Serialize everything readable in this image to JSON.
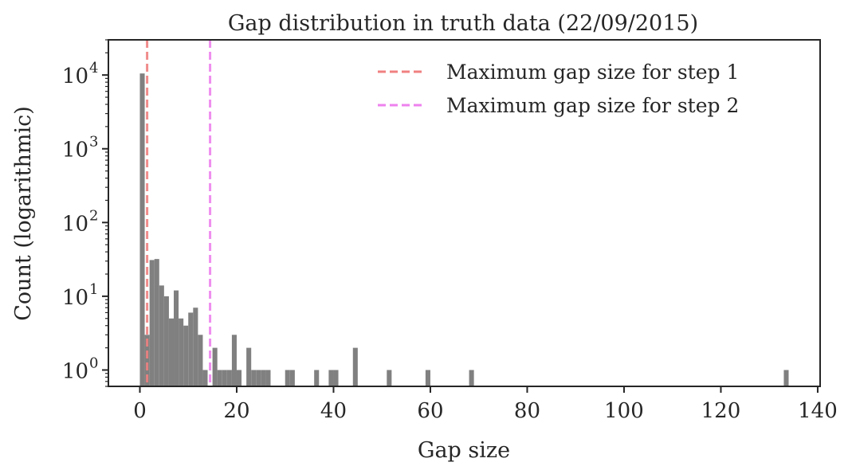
{
  "chart_data": {
    "type": "bar",
    "title": "Gap distribution in truth data (22/09/2015)",
    "xlabel": "Gap size",
    "ylabel": "Count (logarithmic)",
    "xlim": [
      -6.5,
      140.5
    ],
    "ylim": [
      0.6,
      30000
    ],
    "yscale": "log",
    "grid": false,
    "legend_position": "top-right",
    "x_ticks": [
      0,
      20,
      40,
      60,
      80,
      100,
      120,
      140
    ],
    "x_tick_labels": [
      "0",
      "20",
      "40",
      "60",
      "80",
      "100",
      "120",
      "140"
    ],
    "y_ticks": [
      {
        "value": 1,
        "base": "10",
        "exp": "0"
      },
      {
        "value": 10,
        "base": "10",
        "exp": "1"
      },
      {
        "value": 100,
        "base": "10",
        "exp": "2"
      },
      {
        "value": 1000,
        "base": "10",
        "exp": "3"
      },
      {
        "value": 10000,
        "base": "10",
        "exp": "4"
      }
    ],
    "bin_width": 1.0,
    "histogram": {
      "color": "#808080",
      "bins": [
        {
          "x": 0,
          "count": 10500
        },
        {
          "x": 1,
          "count": 3
        },
        {
          "x": 2,
          "count": 31
        },
        {
          "x": 3,
          "count": 32
        },
        {
          "x": 4,
          "count": 14
        },
        {
          "x": 5,
          "count": 10
        },
        {
          "x": 6,
          "count": 5
        },
        {
          "x": 7,
          "count": 12
        },
        {
          "x": 8,
          "count": 5
        },
        {
          "x": 9,
          "count": 4
        },
        {
          "x": 10,
          "count": 6
        },
        {
          "x": 11,
          "count": 7
        },
        {
          "x": 12,
          "count": 3
        },
        {
          "x": 13,
          "count": 1
        },
        {
          "x": 15,
          "count": 2
        },
        {
          "x": 16,
          "count": 1
        },
        {
          "x": 17,
          "count": 1
        },
        {
          "x": 18,
          "count": 1
        },
        {
          "x": 19,
          "count": 3
        },
        {
          "x": 20,
          "count": 1
        },
        {
          "x": 22,
          "count": 2
        },
        {
          "x": 23,
          "count": 1
        },
        {
          "x": 24,
          "count": 1
        },
        {
          "x": 25,
          "count": 1
        },
        {
          "x": 26,
          "count": 1
        },
        {
          "x": 30,
          "count": 1
        },
        {
          "x": 31,
          "count": 1
        },
        {
          "x": 36,
          "count": 1
        },
        {
          "x": 39,
          "count": 1
        },
        {
          "x": 40,
          "count": 1
        },
        {
          "x": 44,
          "count": 2
        },
        {
          "x": 51,
          "count": 1
        },
        {
          "x": 59,
          "count": 1
        },
        {
          "x": 68,
          "count": 1
        },
        {
          "x": 133,
          "count": 1
        }
      ]
    },
    "vlines": [
      {
        "name": "Maximum gap size for step 1",
        "x": 1.5,
        "color": "#f08080",
        "style": "dashed"
      },
      {
        "name": "Maximum gap size for step 2",
        "x": 14.5,
        "color": "#ee82ee",
        "style": "dashed"
      }
    ]
  }
}
